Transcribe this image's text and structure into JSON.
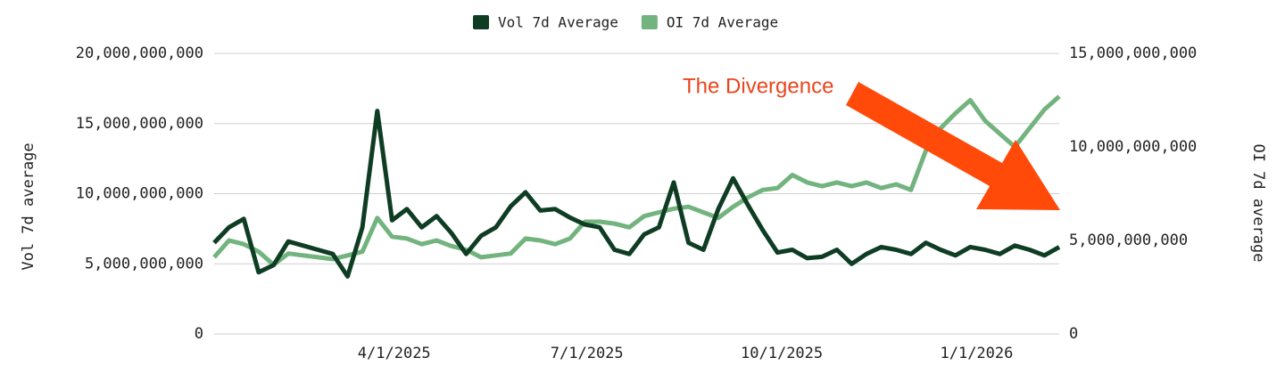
{
  "chart_data": {
    "type": "line",
    "legend": "top",
    "annotation": "The Divergence",
    "ylabel": "Vol 7d average",
    "y2label": "OI 7d average",
    "x": [
      "1/6/2025",
      "1/13/2025",
      "1/20/2025",
      "1/27/2025",
      "2/3/2025",
      "2/10/2025",
      "2/17/2025",
      "2/24/2025",
      "3/3/2025",
      "3/10/2025",
      "3/17/2025",
      "3/24/2025",
      "3/31/2025",
      "4/7/2025",
      "4/14/2025",
      "4/21/2025",
      "4/28/2025",
      "5/5/2025",
      "5/12/2025",
      "5/19/2025",
      "5/26/2025",
      "6/2/2025",
      "6/9/2025",
      "6/16/2025",
      "6/23/2025",
      "6/30/2025",
      "7/7/2025",
      "7/14/2025",
      "7/21/2025",
      "7/28/2025",
      "8/4/2025",
      "8/11/2025",
      "8/18/2025",
      "8/25/2025",
      "9/1/2025",
      "9/8/2025",
      "9/15/2025",
      "9/22/2025",
      "9/29/2025",
      "10/6/2025",
      "10/13/2025",
      "10/20/2025",
      "10/27/2025",
      "11/3/2025",
      "11/10/2025",
      "11/17/2025",
      "11/24/2025",
      "12/1/2025",
      "12/8/2025",
      "12/15/2025",
      "12/22/2025",
      "12/29/2025",
      "1/5/2026",
      "1/12/2026",
      "1/19/2026",
      "1/26/2026",
      "2/2/2026",
      "2/9/2026"
    ],
    "xlim": [
      "1/6/2025",
      "2/9/2026"
    ],
    "xticks": [
      "4/1/2025",
      "7/1/2025",
      "10/1/2025",
      "1/1/2026"
    ],
    "ylim": [
      0,
      20000000000
    ],
    "yticks": [
      0,
      {
        "value": 5000000000,
        "label": "5,000,000,000"
      },
      {
        "value": 10000000000,
        "label": "10,000,000,000"
      },
      {
        "value": 15000000000,
        "label": "15,000,000,000"
      },
      {
        "value": 20000000000,
        "label": "20,000,000,000"
      }
    ],
    "y2lim": [
      0,
      15000000000
    ],
    "y2ticks": [
      0,
      {
        "value": 5000000000,
        "label": "5,000,000,000"
      },
      {
        "value": 10000000000,
        "label": "10,000,000,000"
      },
      {
        "value": 15000000000,
        "label": "15,000,000,000"
      }
    ],
    "grid": true,
    "series": [
      {
        "name": "Vol 7d Average",
        "color": "#0f3d24",
        "values": [
          6500000000,
          7600000000,
          8200000000,
          4400000000,
          4900000000,
          6600000000,
          6300000000,
          6000000000,
          5700000000,
          4100000000,
          7600000000,
          15900000000,
          8100000000,
          8900000000,
          7600000000,
          8400000000,
          7200000000,
          5700000000,
          7000000000,
          7600000000,
          9100000000,
          10100000000,
          8800000000,
          8900000000,
          8300000000,
          7800000000,
          7600000000,
          6000000000,
          5700000000,
          7100000000,
          7600000000,
          10800000000,
          6500000000,
          6000000000,
          8900000000,
          11100000000,
          9200000000,
          7400000000,
          5800000000,
          6000000000,
          5400000000,
          5500000000,
          6000000000,
          5000000000,
          5700000000,
          6200000000,
          6000000000,
          5700000000,
          6500000000,
          6000000000,
          5600000000,
          6200000000,
          6000000000,
          5700000000,
          6300000000,
          6000000000,
          5600000000,
          6200000000
        ]
      },
      {
        "name": "OI 7d Average",
        "color": "#72b37e",
        "axis": "y2",
        "values": [
          4100000000,
          5000000000,
          4800000000,
          4400000000,
          3700000000,
          4300000000,
          4200000000,
          4100000000,
          4000000000,
          4200000000,
          4400000000,
          6200000000,
          5200000000,
          5100000000,
          4800000000,
          5000000000,
          4700000000,
          4500000000,
          4100000000,
          4200000000,
          4300000000,
          5100000000,
          5000000000,
          4800000000,
          5100000000,
          6000000000,
          6000000000,
          5900000000,
          5700000000,
          6300000000,
          6500000000,
          6700000000,
          6800000000,
          6500000000,
          6200000000,
          6800000000,
          7300000000,
          7700000000,
          7800000000,
          8500000000,
          8100000000,
          7900000000,
          8100000000,
          7900000000,
          8100000000,
          7800000000,
          8000000000,
          7700000000,
          9800000000,
          11000000000,
          11800000000,
          12500000000,
          11400000000,
          10700000000,
          10000000000,
          11000000000,
          12000000000,
          12700000000
        ]
      }
    ]
  }
}
